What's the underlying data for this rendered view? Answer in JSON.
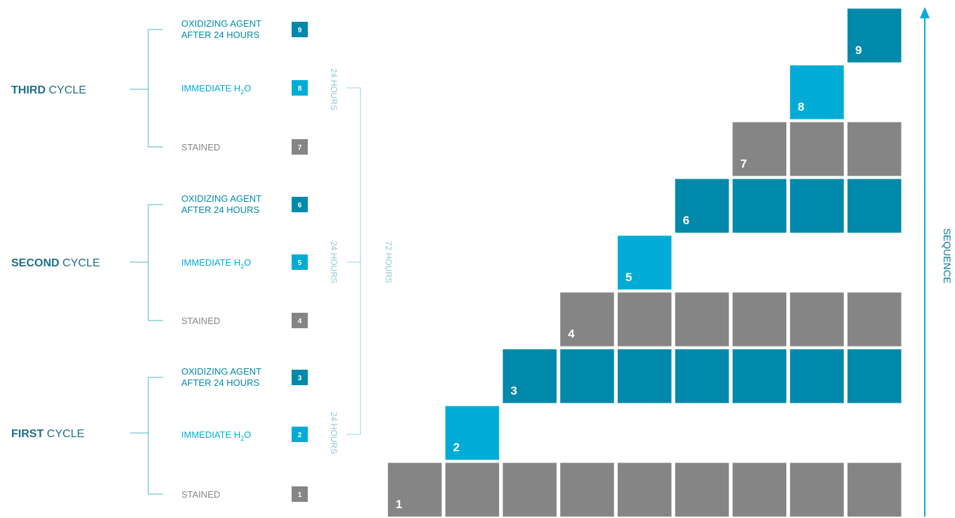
{
  "colors": {
    "stained": "#858585",
    "immediate": "#00acd6",
    "oxidizing": "#0089aa",
    "cycle_title": "#1f6f86",
    "bracket": "#4fb4cf",
    "span_line": "#9fd3e2",
    "arrow": "#0aa8d8"
  },
  "cycles": [
    {
      "bold": "FIRST",
      "rest": "CYCLE",
      "steps": [
        {
          "number": "1",
          "line1": "STAINED",
          "line2": "",
          "kind": "stained"
        },
        {
          "number": "2",
          "line1": "IMMEDIATE H",
          "sub": "2",
          "tail": "O",
          "line2": "",
          "kind": "immediate"
        },
        {
          "number": "3",
          "line1": "OXIDIZING AGENT",
          "line2": "AFTER 24 HOURS",
          "kind": "oxidizing"
        }
      ]
    },
    {
      "bold": "SECOND",
      "rest": "CYCLE",
      "steps": [
        {
          "number": "4",
          "line1": "STAINED",
          "line2": "",
          "kind": "stained"
        },
        {
          "number": "5",
          "line1": "IMMEDIATE H",
          "sub": "2",
          "tail": "O",
          "line2": "",
          "kind": "immediate"
        },
        {
          "number": "6",
          "line1": "OXIDIZING AGENT",
          "line2": "AFTER 24 HOURS",
          "kind": "oxidizing"
        }
      ]
    },
    {
      "bold": "THIRD",
      "rest": "CYCLE",
      "steps": [
        {
          "number": "7",
          "line1": "STAINED",
          "line2": "",
          "kind": "stained"
        },
        {
          "number": "8",
          "line1": "IMMEDIATE H",
          "sub": "2",
          "tail": "O",
          "line2": "",
          "kind": "immediate"
        },
        {
          "number": "9",
          "line1": "OXIDIZING AGENT",
          "line2": "AFTER 24 HOURS",
          "kind": "oxidizing"
        }
      ]
    }
  ],
  "spans": {
    "cycle_span": "24 HOURS",
    "total_span": "72 HOURS"
  },
  "sequence_label": "SEQUENCE",
  "staircase": {
    "columns": 9,
    "rows": [
      {
        "number": "1",
        "kind": "stained",
        "start_col": 0
      },
      {
        "number": "2",
        "kind": "immediate",
        "start_col": 1,
        "single": true
      },
      {
        "number": "3",
        "kind": "oxidizing",
        "start_col": 2
      },
      {
        "number": "4",
        "kind": "stained",
        "start_col": 3
      },
      {
        "number": "5",
        "kind": "immediate",
        "start_col": 4,
        "single": true
      },
      {
        "number": "6",
        "kind": "oxidizing",
        "start_col": 5
      },
      {
        "number": "7",
        "kind": "stained",
        "start_col": 6
      },
      {
        "number": "8",
        "kind": "immediate",
        "start_col": 7,
        "single": true
      },
      {
        "number": "9",
        "kind": "oxidizing",
        "start_col": 8
      }
    ]
  }
}
